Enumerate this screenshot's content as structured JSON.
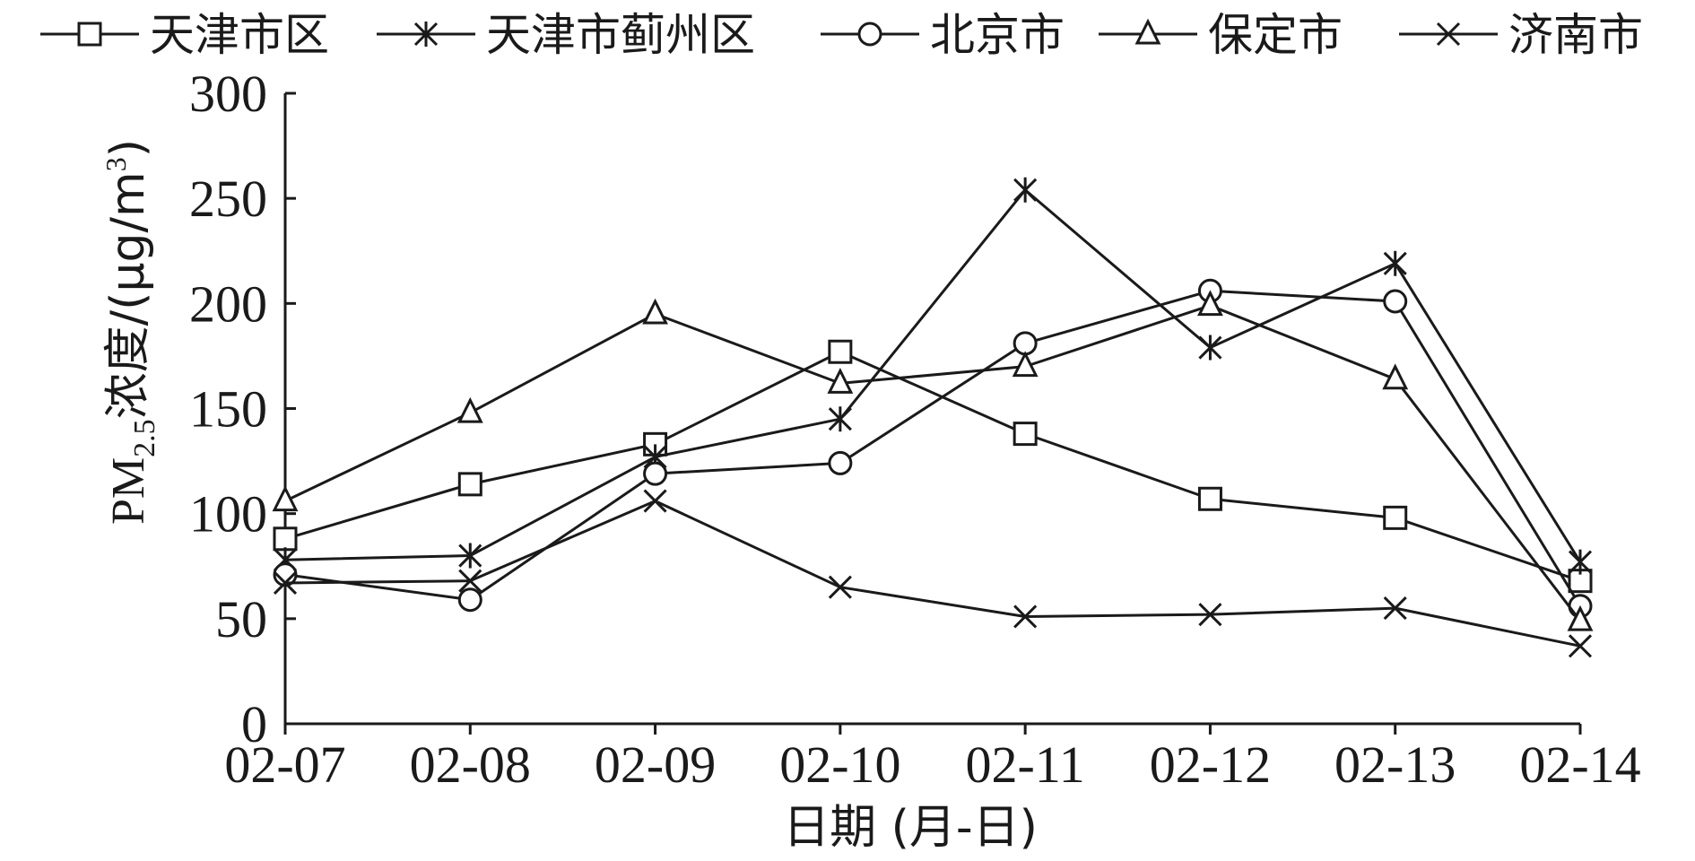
{
  "chart_data": {
    "type": "line",
    "categories": [
      "02-07",
      "02-08",
      "02-09",
      "02-10",
      "02-11",
      "02-12",
      "02-13",
      "02-14"
    ],
    "series": [
      {
        "name": "天津市区",
        "marker": "square",
        "values": [
          88,
          114,
          133,
          177,
          138,
          107,
          98,
          68
        ]
      },
      {
        "name": "天津市蓟州区",
        "marker": "asterisk",
        "values": [
          78,
          80,
          127,
          145,
          254,
          179,
          219,
          77
        ]
      },
      {
        "name": "北京市",
        "marker": "circle",
        "values": [
          71,
          59,
          119,
          124,
          181,
          206,
          201,
          56
        ]
      },
      {
        "name": "保定市",
        "marker": "triangle",
        "values": [
          106,
          148,
          195,
          162,
          170,
          199,
          164,
          49
        ]
      },
      {
        "name": "济南市",
        "marker": "x",
        "values": [
          67,
          68,
          106,
          65,
          51,
          52,
          55,
          37
        ]
      }
    ],
    "ylim": [
      0,
      300
    ],
    "yticks": [
      0,
      50,
      100,
      150,
      200,
      250,
      300
    ],
    "xlabel": "日期 (月-日)",
    "ylabel": {
      "prefix": "PM",
      "subscript": "2.5",
      "text": "浓度/(μg/m",
      "superscript": "3",
      "suffix": ")"
    },
    "grid": false,
    "legend_position": "top",
    "line_color": "#1a1a1a"
  }
}
